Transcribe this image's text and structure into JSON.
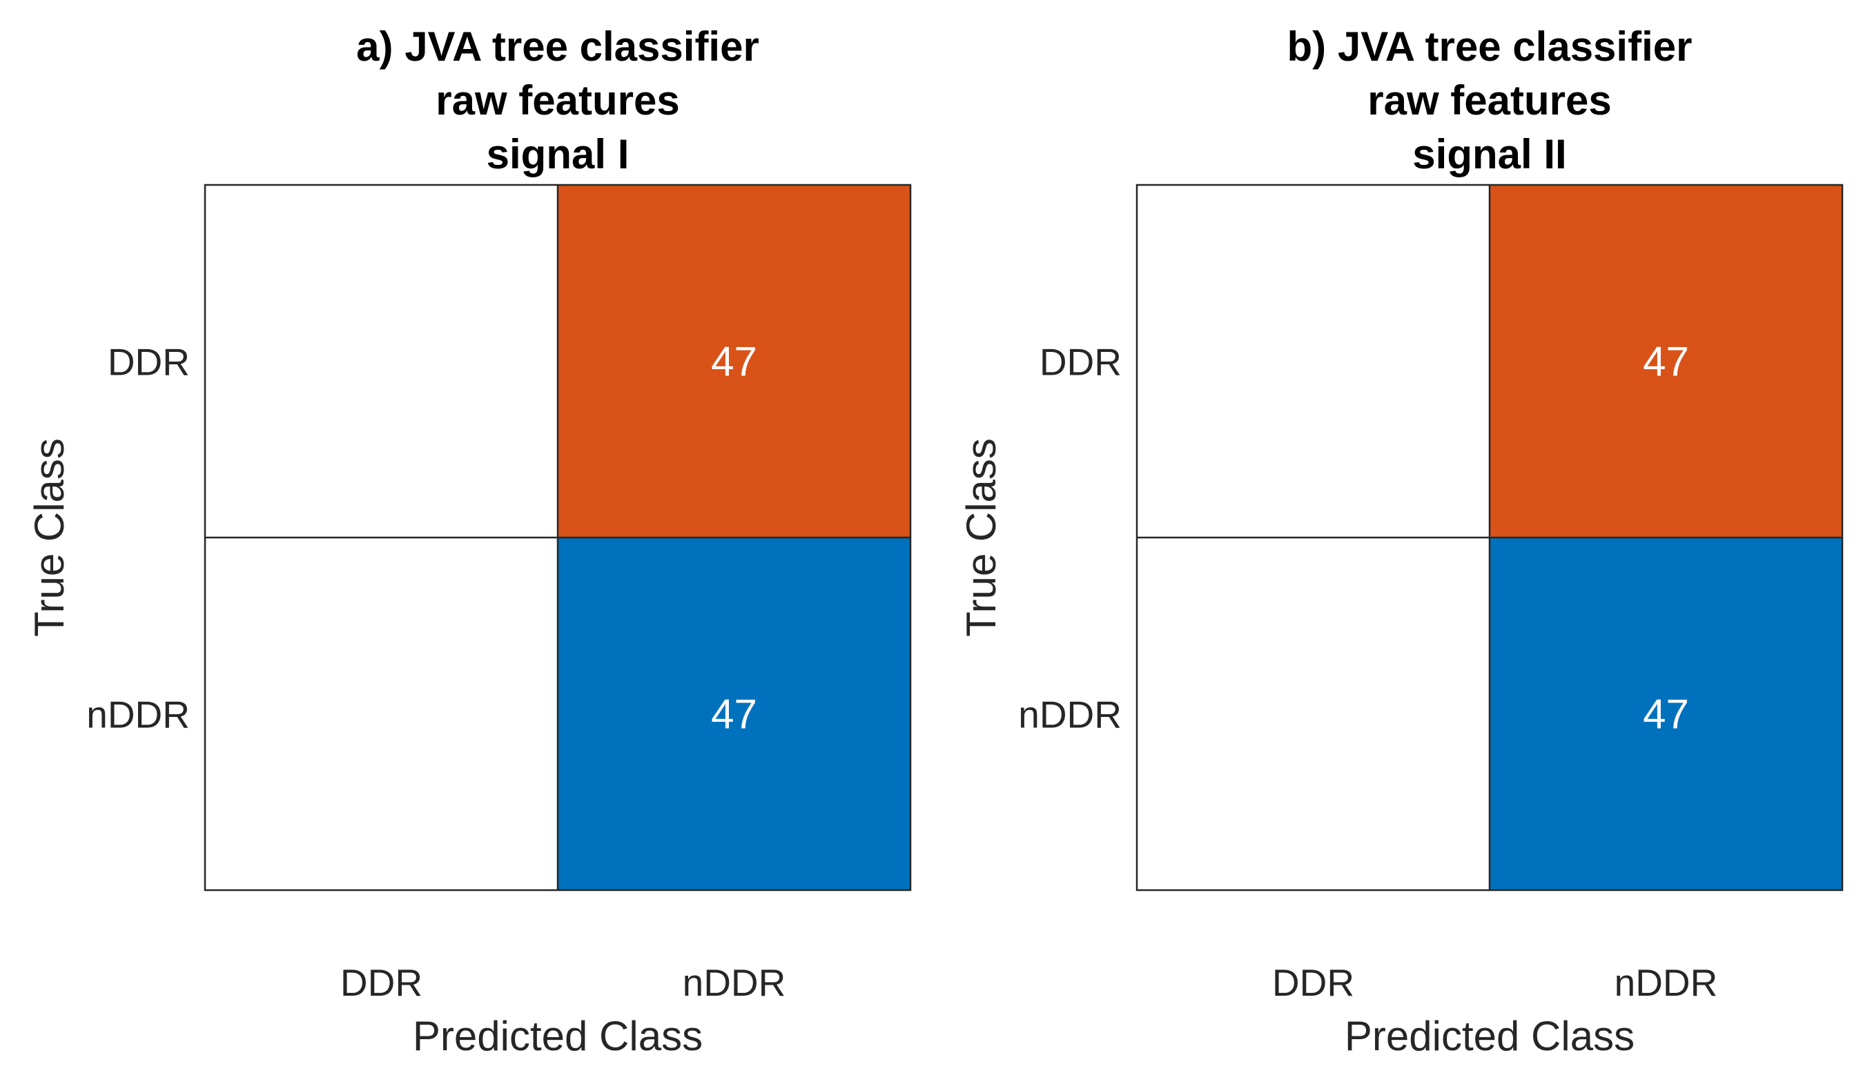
{
  "chart_data": [
    {
      "type": "heatmap",
      "subtype": "confusion-matrix",
      "title_lines": [
        "a) JVA tree classifier",
        "raw features",
        "signal I"
      ],
      "xlabel": "Predicted Class",
      "ylabel": "True Class",
      "row_labels": [
        "DDR",
        "nDDR"
      ],
      "col_labels": [
        "DDR",
        "nDDR"
      ],
      "values": [
        [
          0,
          47
        ],
        [
          0,
          47
        ]
      ],
      "cell_colors": [
        [
          "#ffffff",
          "#d95319"
        ],
        [
          "#ffffff",
          "#0072bd"
        ]
      ]
    },
    {
      "type": "heatmap",
      "subtype": "confusion-matrix",
      "title_lines": [
        "b) JVA tree classifier",
        "raw features",
        "signal II"
      ],
      "xlabel": "Predicted Class",
      "ylabel": "True Class",
      "row_labels": [
        "DDR",
        "nDDR"
      ],
      "col_labels": [
        "DDR",
        "nDDR"
      ],
      "values": [
        [
          0,
          47
        ],
        [
          0,
          47
        ]
      ],
      "cell_colors": [
        [
          "#ffffff",
          "#d95319"
        ],
        [
          "#ffffff",
          "#0072bd"
        ]
      ]
    }
  ],
  "colors": {
    "correct": "#0072bd",
    "incorrect": "#d95319",
    "empty": "#ffffff",
    "frame": "#262626"
  }
}
